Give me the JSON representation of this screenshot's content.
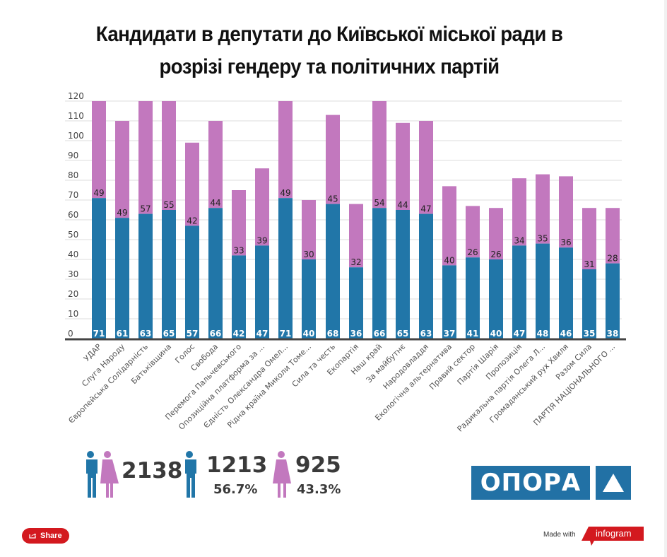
{
  "title_line1": "Кандидати в депутати до Київської міської ради в",
  "title_line2": "розрізі гендеру та політичних партій",
  "colors": {
    "male": "#2176a8",
    "female": "#c278be",
    "axis": "#444444",
    "grid": "#dddddd"
  },
  "chart_data": {
    "type": "bar",
    "stacked": true,
    "title": "Кандидати в депутати до Київської міської ради в розрізі гендеру та політичних партій",
    "xlabel": "",
    "ylabel": "",
    "ylim": [
      0,
      120
    ],
    "yticks": [
      0,
      10,
      20,
      30,
      40,
      50,
      60,
      70,
      80,
      90,
      100,
      110,
      120
    ],
    "grid": true,
    "categories": [
      "УДАР",
      "Слуга Народу",
      "Європейська Солідарність",
      "Батьківщина",
      "Голос",
      "Свобода",
      "Перемога Пальчевського",
      "Опозиційна платформа за ...",
      "Єдність Олександра Омел...",
      "Рідна країна Миколи Томе...",
      "Сила та честь",
      "Екопартія",
      "Наш край",
      "За майбутнє",
      "Народовладдя",
      "Екологічна альтернатива",
      "Правий сектор",
      "Партія Шарія",
      "Пропозиція",
      "Радикальна партія Олега Л...",
      "Громадянський рух Хвиля",
      "Разом Сила",
      "ПАРТІЯ НАЦІОНАЛЬНОГО ..."
    ],
    "series": [
      {
        "name": "male",
        "values": [
          71,
          61,
          63,
          65,
          57,
          66,
          42,
          47,
          71,
          40,
          68,
          36,
          66,
          65,
          63,
          37,
          41,
          40,
          47,
          48,
          46,
          35,
          38
        ]
      },
      {
        "name": "female",
        "values": [
          49,
          49,
          57,
          55,
          42,
          44,
          33,
          39,
          49,
          30,
          45,
          32,
          54,
          44,
          47,
          40,
          26,
          26,
          34,
          35,
          36,
          31,
          28
        ]
      }
    ]
  },
  "stats": {
    "total": "2138",
    "male_count": "1213",
    "male_pct": "56.7%",
    "female_count": "925",
    "female_pct": "43.3%"
  },
  "logo": {
    "text": "ОПОРА"
  },
  "footer": {
    "share_label": "Share",
    "made_with": "Made with",
    "brand": "infogram"
  }
}
